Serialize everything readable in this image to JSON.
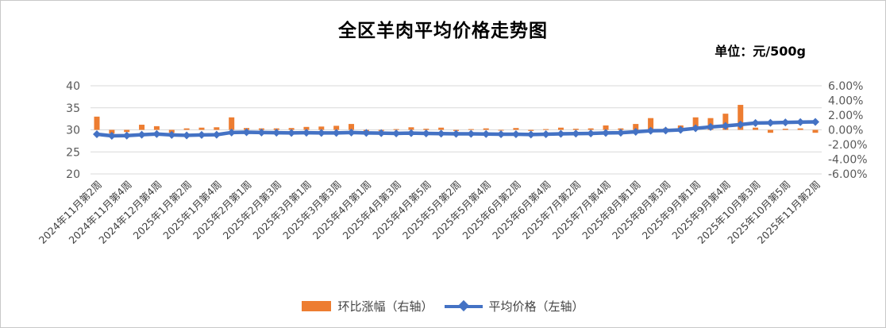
{
  "title": "全区羊肉平均价格走势图",
  "unit_label": "单位：元/500g",
  "colors": {
    "bar": "#ED7D31",
    "line": "#4472C4",
    "grid": "#D9D9D9",
    "axis_text": "#595959",
    "x_label_text": "#404040"
  },
  "legend": {
    "items": [
      {
        "label": "环比涨幅（右轴）",
        "type": "bar",
        "color": "#ED7D31"
      },
      {
        "label": "平均价格（左轴）",
        "type": "line",
        "color": "#4472C4"
      }
    ]
  },
  "chart_data": {
    "type": "combo-bar-line",
    "title": "全区羊肉平均价格走势图",
    "unit": "元/500g",
    "n_points": 49,
    "x_tick_labels": [
      "2024年11月第2周",
      "2024年11月第4周",
      "2024年12月第4周",
      "2025年1月第2周",
      "2025年1月第4周",
      "2025年2月第1周",
      "2025年2月第3周",
      "2025年3月第1周",
      "2025年3月第3周",
      "2025年4月第1周",
      "2025年4月第3周",
      "2025年4月第5周",
      "2025年5月第2周",
      "2025年5月第4周",
      "2025年6月第2周",
      "2025年6月第4周",
      "2025年7月第2周",
      "2025年7月第4周",
      "2025年8月第1周",
      "2025年8月第3周",
      "2025年9月第1周",
      "2025年9月第4周",
      "2025年10月第3周",
      "2025年10月第5周",
      "2025年11月第2周"
    ],
    "label_every": 2,
    "series": [
      {
        "name": "环比涨幅（右轴）",
        "type": "bar",
        "axis": "right",
        "color": "#ED7D31",
        "values": [
          1.8,
          -0.5,
          -0.3,
          0.7,
          0.5,
          -0.4,
          0.2,
          0.3,
          0.35,
          1.7,
          0.25,
          0.2,
          0.2,
          0.25,
          0.4,
          0.45,
          0.55,
          0.8,
          -0.2,
          -0.15,
          0.1,
          0.35,
          0.15,
          0.3,
          -0.15,
          0.1,
          0.2,
          -0.1,
          0.25,
          -0.15,
          0.1,
          0.3,
          0.15,
          0.2,
          0.6,
          0.2,
          0.8,
          1.6,
          0.2,
          0.6,
          1.7,
          1.6,
          2.2,
          3.4,
          0.3,
          -0.4,
          0.15,
          0.2,
          -0.4
        ]
      },
      {
        "name": "平均价格（左轴）",
        "type": "line",
        "axis": "left",
        "color": "#4472C4",
        "values": [
          29.0,
          28.65,
          28.7,
          28.9,
          29.05,
          28.85,
          28.75,
          28.85,
          28.9,
          29.4,
          29.45,
          29.4,
          29.35,
          29.3,
          29.35,
          29.3,
          29.3,
          29.4,
          29.3,
          29.25,
          29.2,
          29.25,
          29.2,
          29.15,
          29.1,
          29.1,
          29.05,
          29.0,
          29.0,
          28.95,
          29.0,
          29.1,
          29.15,
          29.2,
          29.3,
          29.35,
          29.55,
          29.8,
          29.85,
          30.0,
          30.35,
          30.65,
          30.9,
          31.2,
          31.55,
          31.6,
          31.7,
          31.75,
          31.8
        ]
      }
    ],
    "left_axis": {
      "ticks": [
        40,
        35,
        30,
        25,
        20
      ],
      "min": 20,
      "max": 40
    },
    "right_axis": {
      "ticks": [
        6,
        4,
        2,
        0,
        -2,
        -4,
        -6
      ],
      "tick_labels": [
        "6.00%",
        "4.00%",
        "2.00%",
        "0.00%",
        "-2.00%",
        "-4.00%",
        "-6.00%"
      ],
      "min": -6,
      "max": 6
    },
    "grid": true,
    "legend_position": "bottom"
  }
}
